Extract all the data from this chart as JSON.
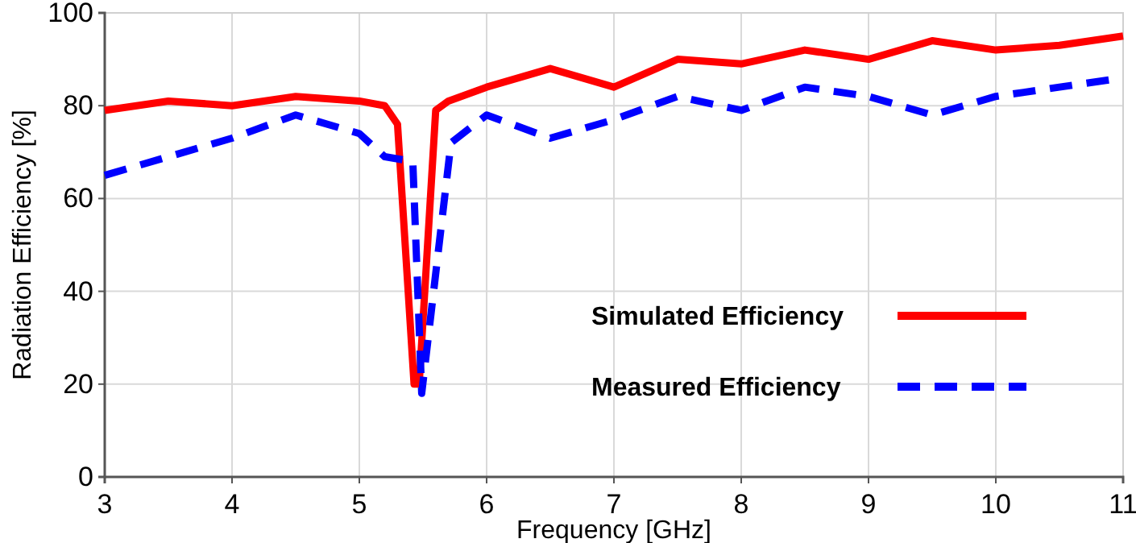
{
  "chart_data": {
    "type": "line",
    "xlabel": "Frequency [GHz]",
    "ylabel": "Radiation Efficiency [%]",
    "xlim": [
      3,
      11
    ],
    "xticks": [
      3,
      4,
      5,
      6,
      7,
      8,
      9,
      10,
      11
    ],
    "ylim": [
      0,
      100
    ],
    "yticks": [
      0,
      20,
      40,
      60,
      80,
      100
    ],
    "grid": true,
    "legend": "bottom right",
    "marker": "none",
    "series": [
      {
        "name": "Simulated Efficiency",
        "color": "#ff0000",
        "line_style": "solid",
        "x": [
          3,
          3.5,
          4,
          4.5,
          5,
          5.2,
          5.3,
          5.43,
          5.47,
          5.6,
          5.7,
          6,
          6.5,
          7,
          7.5,
          8,
          8.5,
          9,
          9.5,
          10,
          10.5,
          11
        ],
        "values": [
          79,
          81,
          80,
          82,
          81,
          80,
          76,
          20,
          20,
          79,
          81,
          84,
          88,
          84,
          90,
          89,
          92,
          90,
          94,
          92,
          93,
          95
        ]
      },
      {
        "name": "Measured Efficiency",
        "color": "#0000ff",
        "line_style": "dashed",
        "x": [
          3,
          3.5,
          4,
          4.5,
          5,
          5.2,
          5.42,
          5.49,
          5.72,
          6,
          6.5,
          7,
          7.5,
          8,
          8.5,
          9,
          9.5,
          10,
          10.5,
          11
        ],
        "values": [
          65,
          69,
          73,
          78,
          74,
          69,
          68,
          18,
          72,
          78,
          73,
          77,
          82,
          79,
          84,
          82,
          78,
          82,
          84,
          86
        ]
      }
    ]
  }
}
